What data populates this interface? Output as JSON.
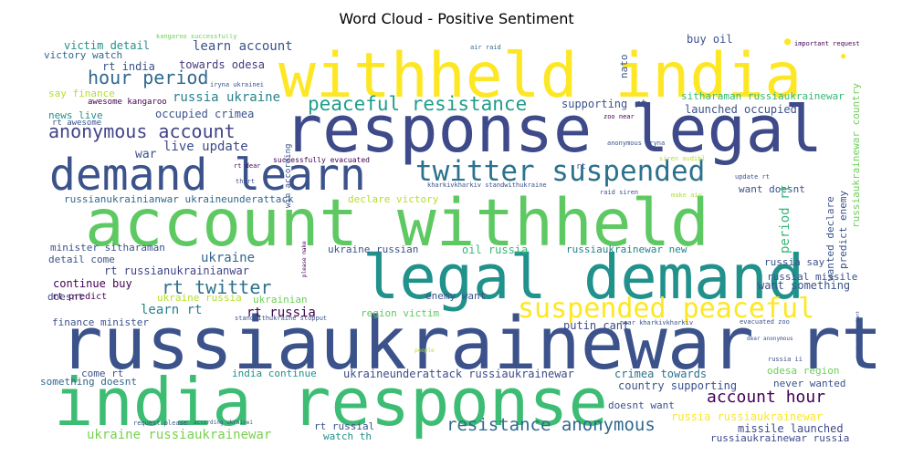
{
  "title": "Word Cloud - Positive Sentiment",
  "palette": {
    "purple": "#440154",
    "indigo": "#3b528b",
    "blue": "#31688e",
    "teal": "#21918c",
    "sea": "#1f9e89",
    "green": "#35b779",
    "lime": "#6ece58",
    "yellow": "#fde725",
    "olive": "#b5de2b"
  },
  "words": [
    {
      "text": "withheld india",
      "color": "#fde725"
    },
    {
      "text": "response legal",
      "color": "#3e4a89"
    },
    {
      "text": "demand learn",
      "color": "#3b528b"
    },
    {
      "text": "account withheld",
      "color": "#5ec962"
    },
    {
      "text": "legal demand",
      "color": "#21918c"
    },
    {
      "text": "russiaukrainewar rt",
      "color": "#3b528b"
    },
    {
      "text": "india response",
      "color": "#3dbc74"
    },
    {
      "text": "twitter suspended",
      "color": "#2c728e"
    },
    {
      "text": "peaceful resistance",
      "color": "#1f9e89"
    },
    {
      "text": "suspended peaceful",
      "color": "#fde725"
    },
    {
      "text": "anonymous account",
      "color": "#414487"
    },
    {
      "text": "hour period",
      "color": "#31688e"
    },
    {
      "text": "account hour",
      "color": "#440154"
    },
    {
      "text": "resistance anonymous",
      "color": "#31688e"
    },
    {
      "text": "rt twitter",
      "color": "#2c728e"
    },
    {
      "text": "learn account",
      "color": "#3b528b"
    },
    {
      "text": "russia ukraine",
      "color": "#26828e"
    },
    {
      "text": "occupied crimea",
      "color": "#3b528b"
    },
    {
      "text": "live update",
      "color": "#3e4a89"
    },
    {
      "text": "victim detail",
      "color": "#21918c"
    },
    {
      "text": "victory watch",
      "color": "#31688e"
    },
    {
      "text": "rt india",
      "color": "#3b528b"
    },
    {
      "text": "towards odesa",
      "color": "#443983"
    },
    {
      "text": "say finance",
      "color": "#b5de2b"
    },
    {
      "text": "awesome kangaroo",
      "color": "#440154"
    },
    {
      "text": "news live",
      "color": "#21918c"
    },
    {
      "text": "rt awesome",
      "color": "#3b528b"
    },
    {
      "text": "war",
      "color": "#3b528b"
    },
    {
      "text": "russianukrainianwar ukraineunderattack",
      "color": "#31688e"
    },
    {
      "text": "declare victory",
      "color": "#b5de2b"
    },
    {
      "text": "minister sitharaman",
      "color": "#3b528b"
    },
    {
      "text": "ukraine",
      "color": "#31688e"
    },
    {
      "text": "detail come",
      "color": "#3b528b"
    },
    {
      "text": "rt russianukrainianwar",
      "color": "#414487"
    },
    {
      "text": "continue buy",
      "color": "#440154"
    },
    {
      "text": "doesnt",
      "color": "#3e4a89"
    },
    {
      "text": "rt predict",
      "color": "#440154"
    },
    {
      "text": "ukraine russia",
      "color": "#b5de2b"
    },
    {
      "text": "ukrainian",
      "color": "#6ece58"
    },
    {
      "text": "learn rt",
      "color": "#26828e"
    },
    {
      "text": "rt russia",
      "color": "#440154"
    },
    {
      "text": "finance minister",
      "color": "#3b528b"
    },
    {
      "text": "region victim",
      "color": "#5ec962"
    },
    {
      "text": "something doesnt",
      "color": "#31688e"
    },
    {
      "text": "come rt",
      "color": "#3b528b"
    },
    {
      "text": "india continue",
      "color": "#21918c"
    },
    {
      "text": "ukraineunderattack russiaukrainewar",
      "color": "#3e4a89"
    },
    {
      "text": "ukraine russiaukrainewar",
      "color": "#7ad151"
    },
    {
      "text": "rt russial",
      "color": "#3b528b"
    },
    {
      "text": "watch th",
      "color": "#21918c"
    },
    {
      "text": "crimea towards",
      "color": "#2c728e"
    },
    {
      "text": "country supporting",
      "color": "#3b528b"
    },
    {
      "text": "doesnt want",
      "color": "#3b528b"
    },
    {
      "text": "russia russiaukrainewar",
      "color": "#fde725"
    },
    {
      "text": "missile launched",
      "color": "#3e4a89"
    },
    {
      "text": "russiaukrainewar russia",
      "color": "#3e4a89"
    },
    {
      "text": "odesa region",
      "color": "#6ece58"
    },
    {
      "text": "never wanted",
      "color": "#3b528b"
    },
    {
      "text": "putin cant",
      "color": "#3e4a89"
    },
    {
      "text": "want something",
      "color": "#3b528b"
    },
    {
      "text": "russial missile",
      "color": "#3b528b"
    },
    {
      "text": "russia say",
      "color": "#3b528b"
    },
    {
      "text": "ukraine russian",
      "color": "#3b528b"
    },
    {
      "text": "oil russia",
      "color": "#35b779"
    },
    {
      "text": "russiaukrainewar new",
      "color": "#26828e"
    },
    {
      "text": "enemy want",
      "color": "#3b528b"
    },
    {
      "text": "want doesnt",
      "color": "#3b528b"
    },
    {
      "text": "buy oil",
      "color": "#3b528b"
    },
    {
      "text": "supporting rt",
      "color": "#3b528b"
    },
    {
      "text": "sitharaman russiaukrainewar",
      "color": "#35b779"
    },
    {
      "text": "launched occupied",
      "color": "#3b528b"
    },
    {
      "text": "nato",
      "color": "#3b528b"
    },
    {
      "text": "period rt",
      "color": "#35b779"
    },
    {
      "text": "wanted declare",
      "color": "#3b528b"
    },
    {
      "text": "predict enemy",
      "color": "#3b528b"
    },
    {
      "text": "russiaukrainewar country",
      "color": "#6ece58"
    },
    {
      "text": "win according",
      "color": "#3b528b"
    },
    {
      "text": "successfully evacuated",
      "color": "#440154"
    },
    {
      "text": "kangaroo successfully",
      "color": "#6ece58"
    },
    {
      "text": "iryna ukrainei",
      "color": "#3b528b"
    },
    {
      "text": "air raid",
      "color": "#31688e"
    },
    {
      "text": "important request",
      "color": "#440154"
    },
    {
      "text": "zoo near",
      "color": "#440154"
    },
    {
      "text": "anonymous iryna",
      "color": "#3b528b"
    },
    {
      "text": "siren audibl",
      "color": "#b5de2b"
    },
    {
      "text": "rt dear",
      "color": "#440154"
    },
    {
      "text": "th rt",
      "color": "#3b528b"
    },
    {
      "text": "kharkivkharkiv standwithukraine",
      "color": "#3b528b"
    },
    {
      "text": "raid siren",
      "color": "#3b528b"
    },
    {
      "text": "make air",
      "color": "#b5de2b"
    },
    {
      "text": "update rt",
      "color": "#3b528b"
    },
    {
      "text": "please make",
      "color": "#440154"
    },
    {
      "text": "standwithukraine stopput",
      "color": "#3b528b"
    },
    {
      "text": "near kharkivkharkiv",
      "color": "#3b528b"
    },
    {
      "text": "evacuated zoo",
      "color": "#3b528b"
    },
    {
      "text": "dear anonymous",
      "color": "#3b528b"
    },
    {
      "text": "request please",
      "color": "#3b528b"
    },
    {
      "text": "according ukrainei",
      "color": "#3b528b"
    },
    {
      "text": "ukrainei important",
      "color": "#3b528b"
    },
    {
      "text": "people",
      "color": "#b5de2b"
    },
    {
      "text": "russia ii",
      "color": "#3b528b"
    },
    {
      "text": "rt",
      "color": "#3b528b"
    }
  ]
}
